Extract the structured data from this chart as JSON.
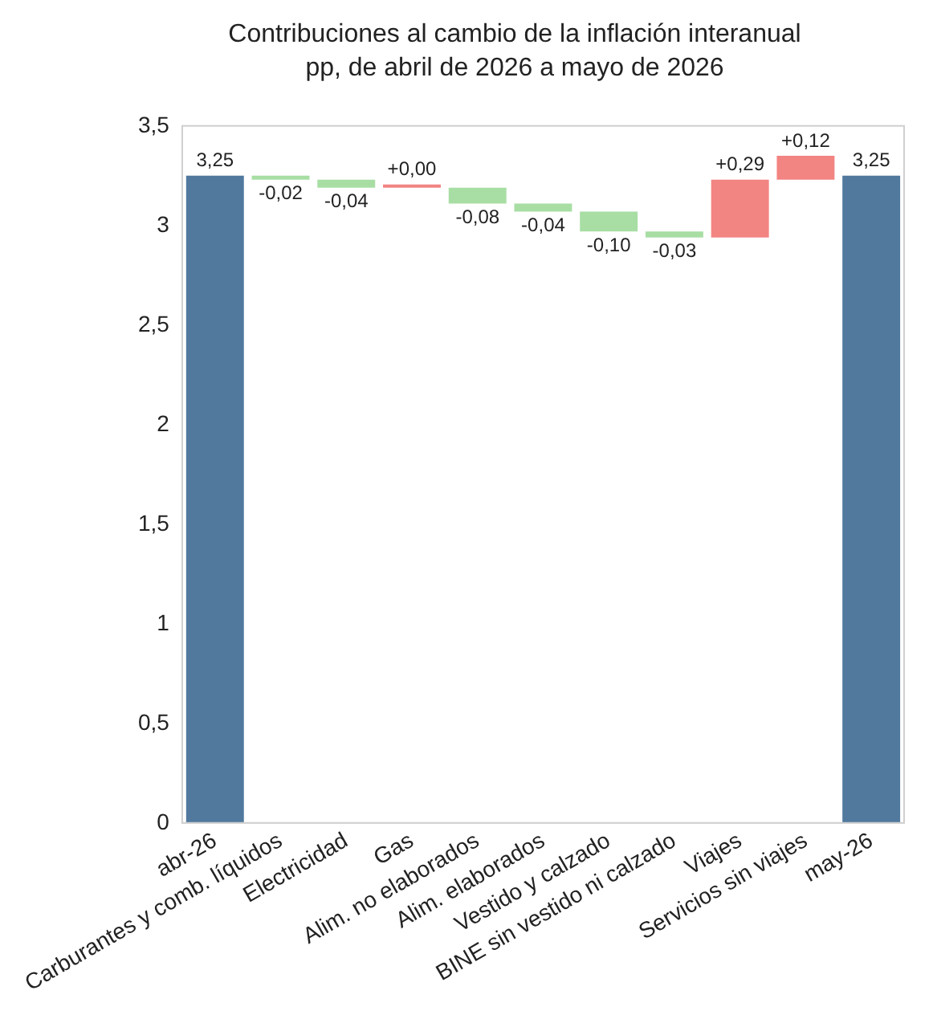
{
  "chart_data": {
    "type": "bar",
    "title": "Contribuciones al cambio de la inflación interanual",
    "subtitle": "pp, de abril de 2026 a mayo de 2026",
    "categories": [
      "abr-26",
      "Carburantes y comb. líquidos",
      "Electricidad",
      "Gas",
      "Alim. no elaborados",
      "Alim. elaborados",
      "Vestido y calzado",
      "BINE sin vestido ni calzado",
      "Viajes",
      "Servicios sin viajes",
      "may-26"
    ],
    "values": [
      3.25,
      -0.02,
      -0.04,
      0.0,
      -0.08,
      -0.04,
      -0.1,
      -0.03,
      0.29,
      0.12,
      3.25
    ],
    "base": [
      0,
      3.25,
      3.23,
      3.19,
      3.19,
      3.11,
      3.07,
      2.97,
      2.94,
      3.23,
      0
    ],
    "colors": [
      "#51799e",
      "#a8dea4",
      "#a8dea4",
      "#f28482",
      "#a8dea4",
      "#a8dea4",
      "#a8dea4",
      "#a8dea4",
      "#f28482",
      "#f28482",
      "#51799e"
    ],
    "value_labels": [
      "3,25",
      "-0,02",
      "-0,04",
      "+0,00",
      "-0,08",
      "-0,04",
      "-0,10",
      "-0,03",
      "+0,29",
      "+0,12",
      "3,25"
    ],
    "ylim": [
      0,
      3.5
    ],
    "yticks": [
      0,
      {
        "value": 0.5,
        "label": "0,5"
      },
      1,
      {
        "value": 1.5,
        "label": "1,5"
      },
      2,
      {
        "value": 2.5,
        "label": "2,5"
      },
      3,
      {
        "value": 3.5,
        "label": "3,5"
      }
    ],
    "grid": false,
    "legend": false
  }
}
